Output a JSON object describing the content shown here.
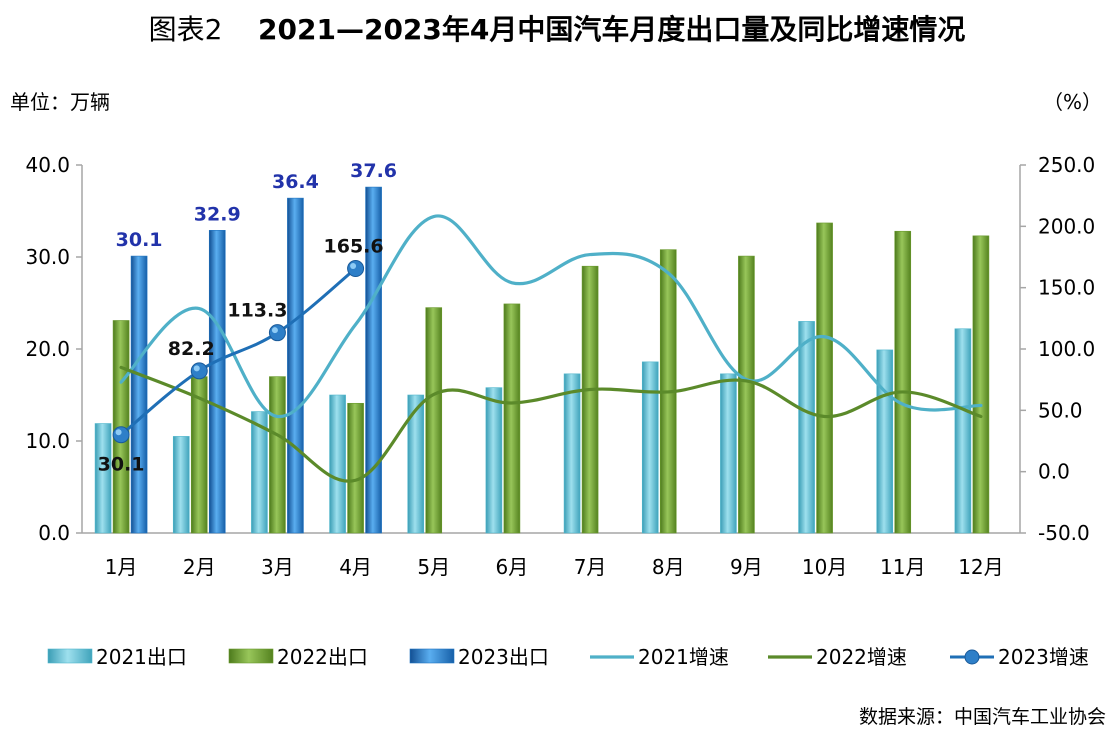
{
  "title_prefix": "图表2",
  "title_main": "2021—2023年4月中国汽车月度出口量及同比增速情况",
  "unit_left": "单位：万辆",
  "unit_right": "（%）",
  "source": "数据来源：中国汽车工业协会",
  "colors": {
    "bar2021": "#4fb6cc",
    "bar2022": "#6a9a2e",
    "bar2023": "#1f73c0",
    "line2021": "#4fb0c8",
    "line2022": "#5b8a2a",
    "line2023": "#1f6fb6"
  },
  "chart_data": {
    "type": "bar",
    "categories": [
      "1月",
      "2月",
      "3月",
      "4月",
      "5月",
      "6月",
      "7月",
      "8月",
      "9月",
      "10月",
      "11月",
      "12月"
    ],
    "left_axis": {
      "ylim": [
        0,
        40
      ],
      "ticks": [
        "0.0",
        "10.0",
        "20.0",
        "30.0",
        "40.0"
      ]
    },
    "right_axis": {
      "ylim": [
        -50,
        250
      ],
      "ticks": [
        "-50.0",
        "0.0",
        "50.0",
        "100.0",
        "150.0",
        "200.0",
        "250.0"
      ]
    },
    "bar_series": [
      {
        "name": "2021出口",
        "values": [
          11.9,
          10.5,
          13.2,
          15.0,
          15.0,
          15.8,
          17.3,
          18.6,
          17.3,
          23.0,
          19.9,
          22.2
        ]
      },
      {
        "name": "2022出口",
        "values": [
          23.1,
          17.0,
          17.0,
          14.1,
          24.5,
          24.9,
          29.0,
          30.8,
          30.1,
          33.7,
          32.8,
          32.3
        ]
      },
      {
        "name": "2023出口",
        "values": [
          30.1,
          32.9,
          36.4,
          37.6
        ]
      }
    ],
    "line_series": [
      {
        "name": "2021增速",
        "values": [
          73,
          133,
          45,
          120,
          208,
          154,
          177,
          162,
          75,
          110,
          55,
          54
        ]
      },
      {
        "name": "2022增速",
        "values": [
          85,
          60,
          30,
          -7,
          63,
          56,
          67,
          65,
          74,
          45,
          65,
          45
        ]
      },
      {
        "name": "2023增速",
        "values": [
          30.1,
          82.2,
          113.3,
          165.6
        ]
      }
    ],
    "data_labels": {
      "bars2023": [
        "30.1",
        "32.9",
        "36.4",
        "37.6"
      ],
      "line2023": [
        "30.1",
        "82.2",
        "113.3",
        "165.6"
      ]
    },
    "legend": [
      "2021出口",
      "2022出口",
      "2023出口",
      "2021增速",
      "2022增速",
      "2023增速"
    ],
    "legend_position": "bottom"
  }
}
